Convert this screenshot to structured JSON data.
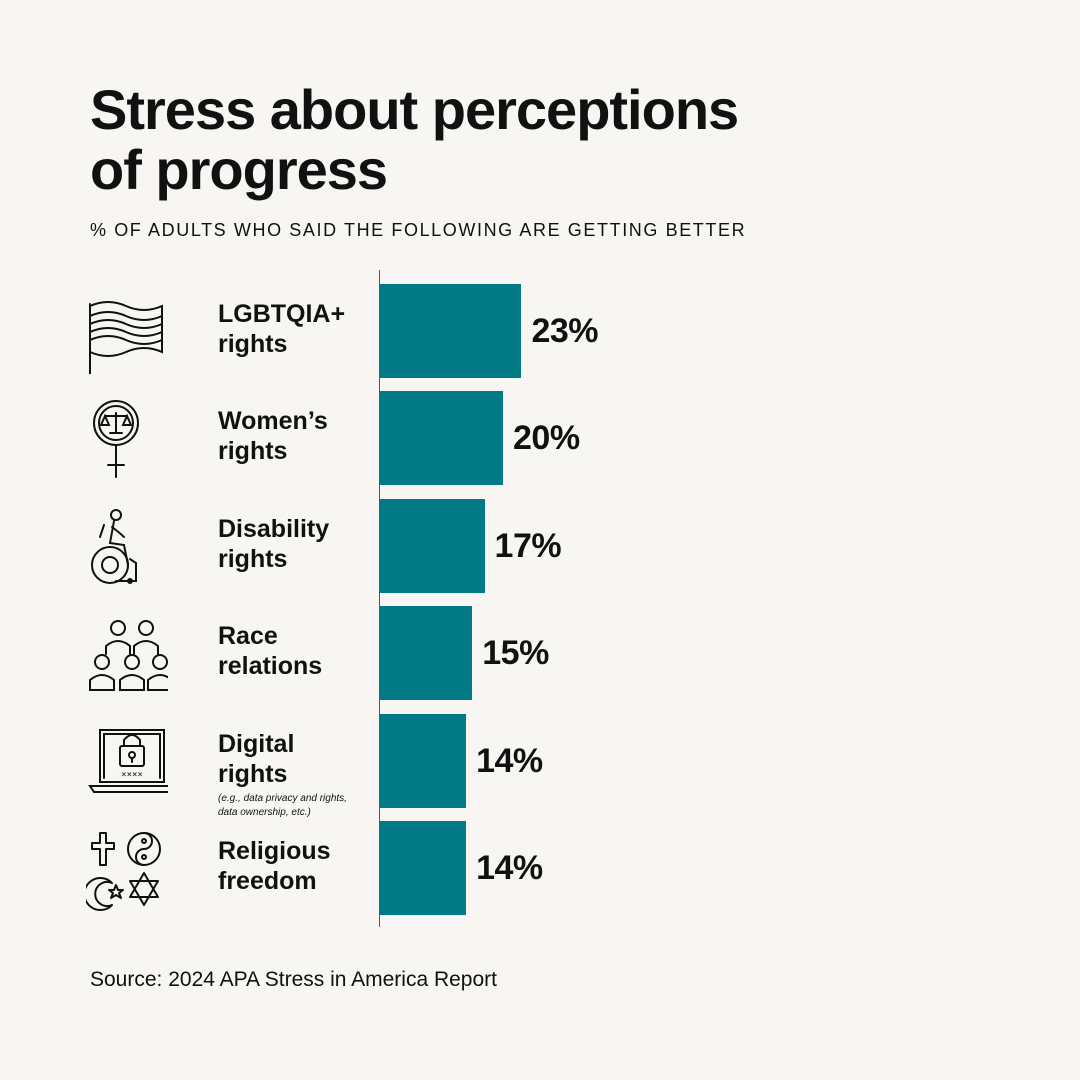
{
  "title_line1": "Stress about perceptions",
  "title_line2": "of progress",
  "subtitle": "% OF ADULTS WHO SAID THE FOLLOWING ARE GETTING BETTER",
  "source": "Source: 2024 APA Stress in America Report",
  "colors": {
    "bar": "#007a85",
    "background": "#f7f6f2",
    "text": "#111111"
  },
  "rows": [
    {
      "label_lines": [
        "LGBTQIA+",
        "rights"
      ],
      "value_label": "23%",
      "icon": "flag-icon"
    },
    {
      "label_lines": [
        "Women’s",
        "rights"
      ],
      "value_label": "20%",
      "icon": "female-justice-scales-icon"
    },
    {
      "label_lines": [
        "Disability",
        "rights"
      ],
      "value_label": "17%",
      "icon": "wheelchair-icon"
    },
    {
      "label_lines": [
        "Race",
        "relations"
      ],
      "value_label": "15%",
      "icon": "people-group-icon"
    },
    {
      "label_lines": [
        "Digital",
        "rights"
      ],
      "note_lines": [
        "(e.g., data privacy and rights,",
        " data ownership, etc.)"
      ],
      "value_label": "14%",
      "icon": "laptop-lock-icon"
    },
    {
      "label_lines": [
        "Religious",
        "freedom"
      ],
      "value_label": "14%",
      "icon": "religious-symbols-icon"
    }
  ],
  "chart_data": {
    "type": "bar",
    "orientation": "horizontal",
    "title": "Stress about perceptions of progress",
    "subtitle": "% OF ADULTS WHO SAID THE FOLLOWING ARE GETTING BETTER",
    "categories": [
      "LGBTQIA+ rights",
      "Women’s rights",
      "Disability rights",
      "Race relations",
      "Digital rights",
      "Religious freedom"
    ],
    "values": [
      23,
      20,
      17,
      15,
      14,
      14
    ],
    "unit": "%",
    "grid": false,
    "legend": "none",
    "xlabel": "",
    "ylabel": "",
    "xlim": [
      0,
      100
    ]
  }
}
